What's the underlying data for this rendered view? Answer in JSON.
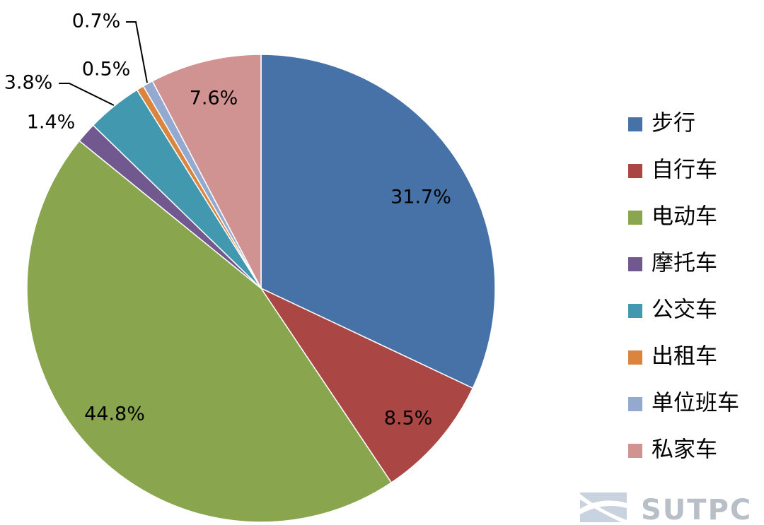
{
  "chart_data": {
    "type": "pie",
    "title": "",
    "start": "12 o'clock, clockwise",
    "legend_position": "right",
    "slices": [
      {
        "label": "步行",
        "value": 31.7,
        "display": "31.7%",
        "color": "#4672a8"
      },
      {
        "label": "自行车",
        "value": 8.5,
        "display": "8.5%",
        "color": "#aa4644"
      },
      {
        "label": "电动车",
        "value": 44.8,
        "display": "44.8%",
        "color": "#89a54e"
      },
      {
        "label": "摩托车",
        "value": 1.4,
        "display": "1.4%",
        "color": "#71588f"
      },
      {
        "label": "公交车",
        "value": 3.8,
        "display": "3.8%",
        "color": "#4298af"
      },
      {
        "label": "出租车",
        "value": 0.5,
        "display": "0.5%",
        "color": "#db843d"
      },
      {
        "label": "单位班车",
        "value": 0.7,
        "display": "0.7%",
        "color": "#93a9cf"
      },
      {
        "label": "私家车",
        "value": 7.6,
        "display": "7.6%",
        "color": "#d19392"
      }
    ]
  },
  "watermark": {
    "text": "SUTPC"
  }
}
